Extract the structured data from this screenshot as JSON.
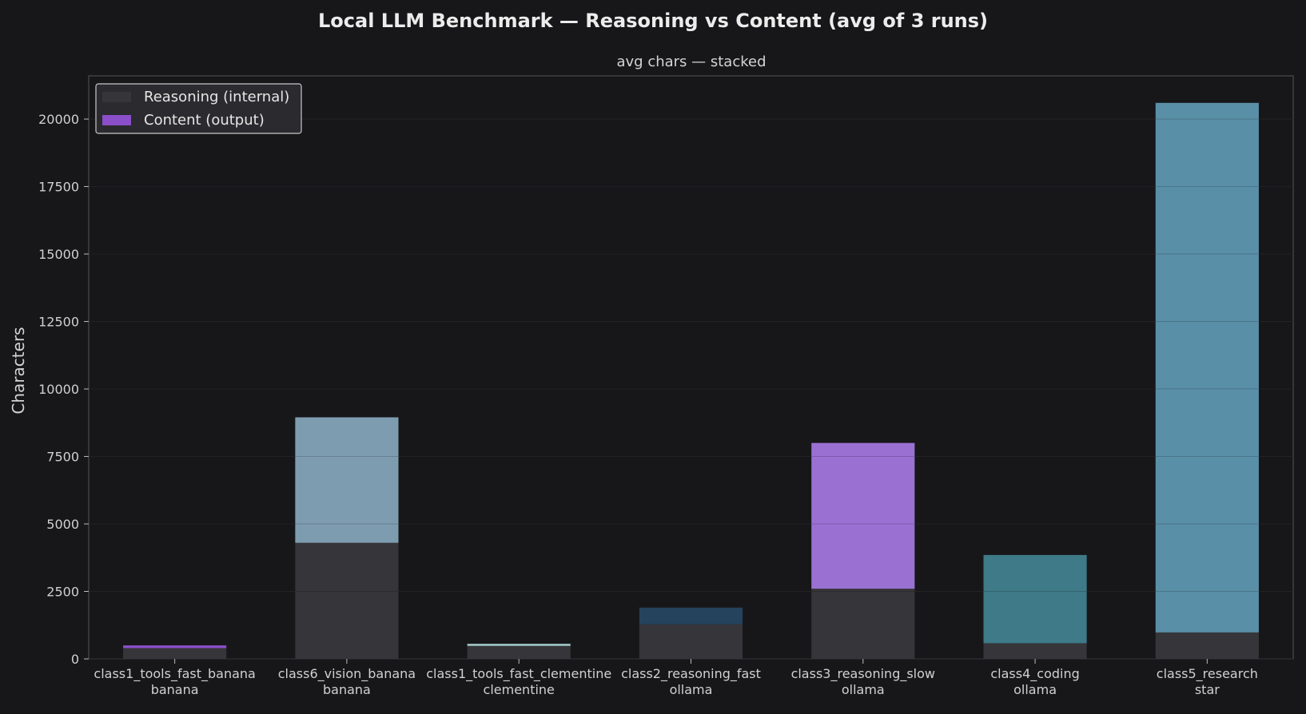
{
  "chart_data": {
    "type": "bar",
    "stacked": true,
    "title": "Local LLM Benchmark — Reasoning vs Content  (avg of 3 runs)",
    "subtitle": "avg chars — stacked",
    "ylabel": "Characters",
    "xlabel": "",
    "ylim": [
      0,
      21600
    ],
    "yticks": [
      0,
      2500,
      5000,
      7500,
      10000,
      12500,
      15000,
      17500,
      20000
    ],
    "grid": true,
    "legend_position": "top-left",
    "categories": [
      {
        "name": "class1_tools_fast_banana",
        "host": "banana"
      },
      {
        "name": "class6_vision_banana",
        "host": "banana"
      },
      {
        "name": "class1_tools_fast_clementine",
        "host": "clementine"
      },
      {
        "name": "class2_reasoning_fast",
        "host": "ollama"
      },
      {
        "name": "class3_reasoning_slow",
        "host": "ollama"
      },
      {
        "name": "class4_coding",
        "host": "ollama"
      },
      {
        "name": "class5_research",
        "host": "star"
      }
    ],
    "series": [
      {
        "name": "Reasoning (internal)",
        "color": "#363539",
        "values": [
          400,
          4300,
          480,
          1280,
          2600,
          580,
          980
        ]
      },
      {
        "name": "Content (output)",
        "color": "#8a4fc9",
        "values": [
          100,
          4650,
          80,
          620,
          5400,
          3270,
          19620
        ]
      }
    ],
    "content_colors": [
      "#8a4fc9",
      "#7e9cb0",
      "#9ec3c4",
      "#25435d",
      "#9a71d3",
      "#3e7a88",
      "#5a8fa8"
    ]
  }
}
